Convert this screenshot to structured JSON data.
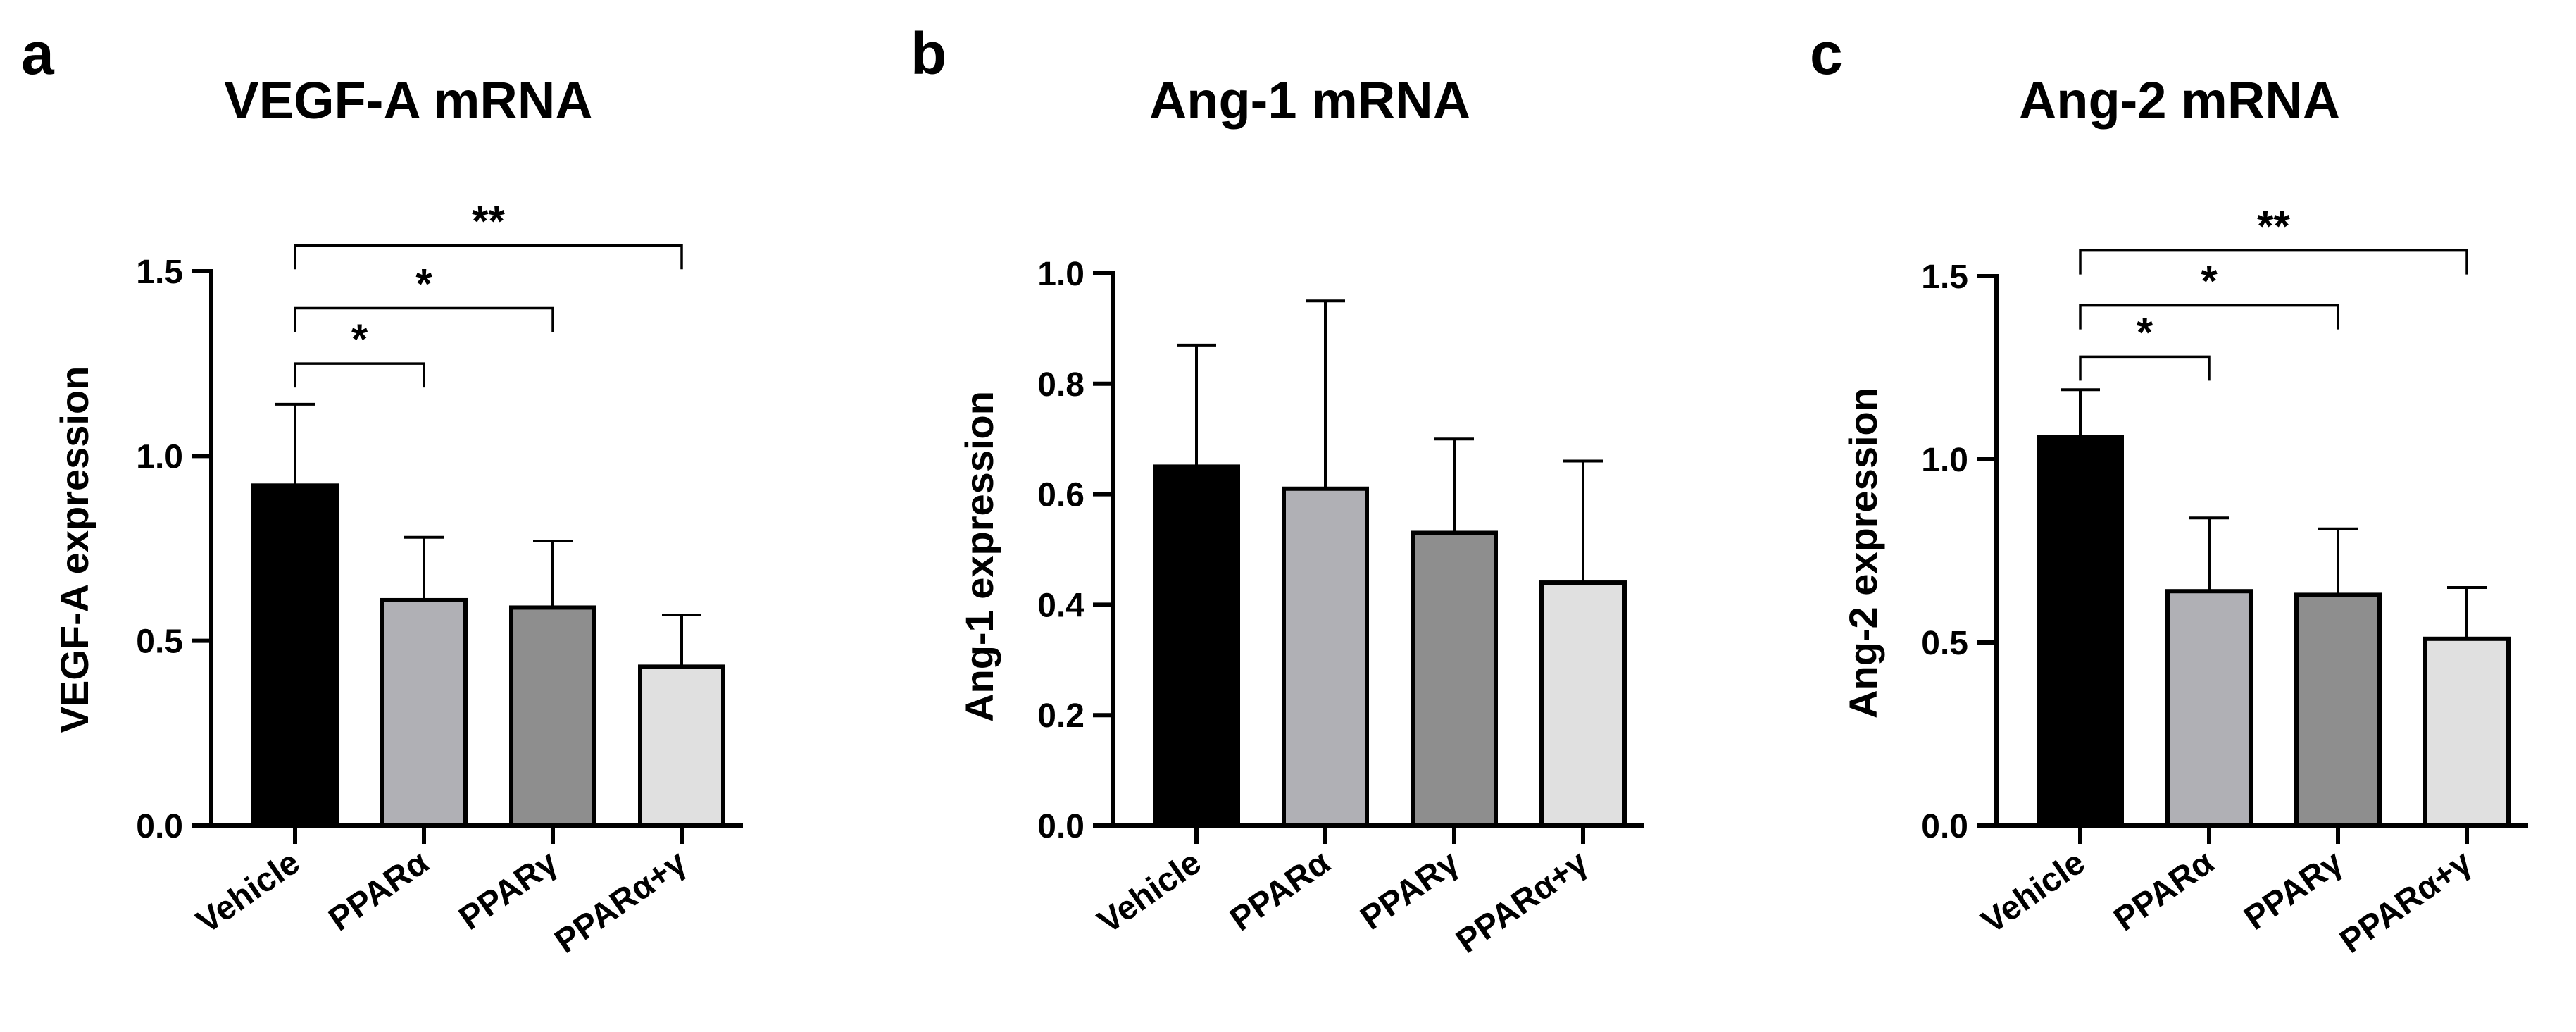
{
  "chart_data": [
    {
      "panel_letter": "a",
      "type": "bar",
      "title": "VEGF-A mRNA",
      "ylabel": "VEGF-A expression",
      "xlabel": "",
      "categories": [
        "Vehicle",
        "PPARα",
        "PPARγ",
        "PPARα+γ"
      ],
      "values": [
        0.92,
        0.61,
        0.59,
        0.43
      ],
      "errors": [
        0.22,
        0.17,
        0.18,
        0.14
      ],
      "colors": [
        "#000000",
        "#b0b0b5",
        "#8e8e8e",
        "#e0e0e0"
      ],
      "ylim": [
        0,
        1.5
      ],
      "yticks": [
        0.0,
        0.5,
        1.0,
        1.5
      ],
      "ytick_labels": [
        "0.0",
        "0.5",
        "1.0",
        "1.5"
      ],
      "significance": [
        {
          "from": 0,
          "to": 1,
          "label": "*",
          "y": 1.25
        },
        {
          "from": 0,
          "to": 2,
          "label": "*",
          "y": 1.4
        },
        {
          "from": 0,
          "to": 3,
          "label": "**",
          "y": 1.57
        }
      ]
    },
    {
      "panel_letter": "b",
      "type": "bar",
      "title": "Ang-1 mRNA",
      "ylabel": "Ang-1 expression",
      "xlabel": "",
      "categories": [
        "Vehicle",
        "PPARα",
        "PPARγ",
        "PPARα+γ"
      ],
      "values": [
        0.65,
        0.61,
        0.53,
        0.44
      ],
      "errors": [
        0.22,
        0.34,
        0.17,
        0.22
      ],
      "colors": [
        "#000000",
        "#b0b0b5",
        "#8e8e8e",
        "#e0e0e0"
      ],
      "ylim": [
        0,
        1.0
      ],
      "yticks": [
        0.0,
        0.2,
        0.4,
        0.6,
        0.8,
        1.0
      ],
      "ytick_labels": [
        "0.0",
        "0.2",
        "0.4",
        "0.6",
        "0.8",
        "1.0"
      ],
      "significance": []
    },
    {
      "panel_letter": "c",
      "type": "bar",
      "title": "Ang-2 mRNA",
      "ylabel": "Ang-2 expression",
      "xlabel": "",
      "categories": [
        "Vehicle",
        "PPARα",
        "PPARγ",
        "PPARα+γ"
      ],
      "values": [
        1.06,
        0.64,
        0.63,
        0.51
      ],
      "errors": [
        0.13,
        0.2,
        0.18,
        0.14
      ],
      "colors": [
        "#000000",
        "#b0b0b5",
        "#8e8e8e",
        "#e0e0e0"
      ],
      "ylim": [
        0,
        1.5
      ],
      "yticks": [
        0.0,
        0.5,
        1.0,
        1.5
      ],
      "ytick_labels": [
        "0.0",
        "0.5",
        "1.0",
        "1.5"
      ],
      "significance": [
        {
          "from": 0,
          "to": 1,
          "label": "*",
          "y": 1.28
        },
        {
          "from": 0,
          "to": 2,
          "label": "*",
          "y": 1.42
        },
        {
          "from": 0,
          "to": 3,
          "label": "**",
          "y": 1.57
        }
      ]
    }
  ]
}
